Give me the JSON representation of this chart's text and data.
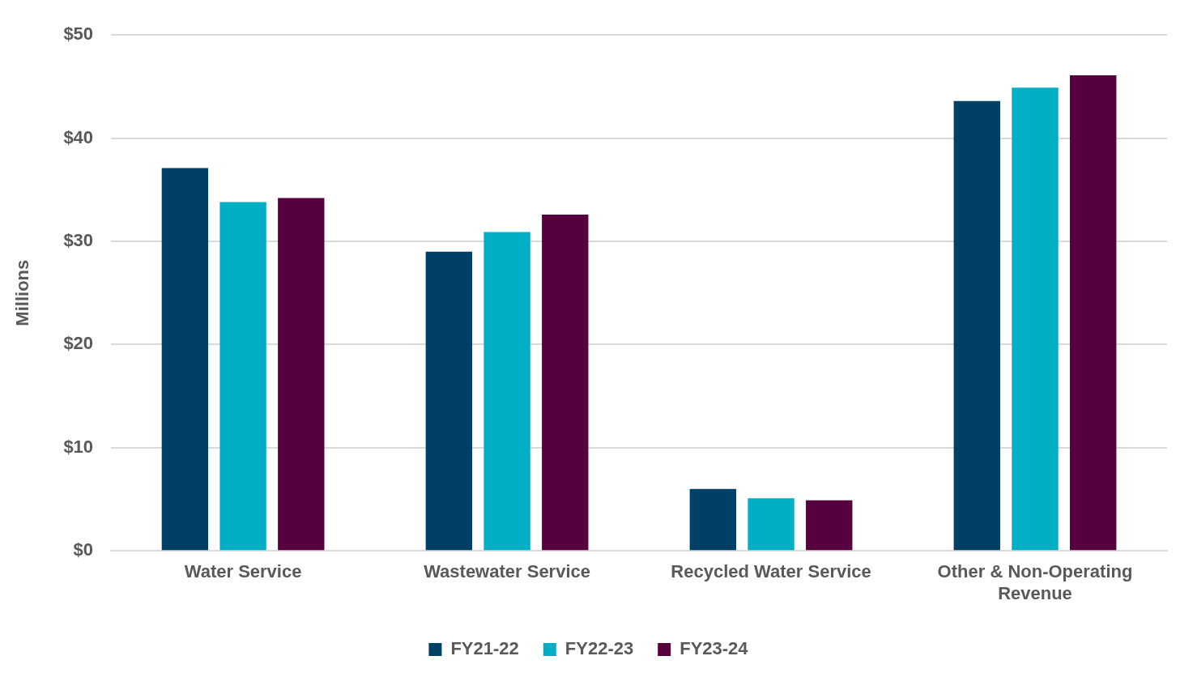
{
  "chart_data": {
    "type": "bar",
    "ylabel": "Millions",
    "categories": [
      "Water Service",
      "Wastewater Service",
      "Recycled Water Service",
      "Other & Non-Operating Revenue"
    ],
    "series": [
      {
        "name": "FY21-22",
        "color": "#003f66",
        "values": [
          37.1,
          29.0,
          6.0,
          43.6
        ]
      },
      {
        "name": "FY22-23",
        "color": "#00afc4",
        "values": [
          33.8,
          30.9,
          5.1,
          44.9
        ]
      },
      {
        "name": "FY23-24",
        "color": "#560040",
        "values": [
          34.2,
          32.6,
          4.9,
          46.1
        ]
      }
    ],
    "ylim": [
      0,
      50
    ],
    "yticks": [
      {
        "value": 0,
        "label": "$0"
      },
      {
        "value": 10,
        "label": "$10"
      },
      {
        "value": 20,
        "label": "$20"
      },
      {
        "value": 30,
        "label": "$30"
      },
      {
        "value": 40,
        "label": "$40"
      },
      {
        "value": 50,
        "label": "$50"
      }
    ],
    "grid": "y",
    "legend": "bottom"
  }
}
